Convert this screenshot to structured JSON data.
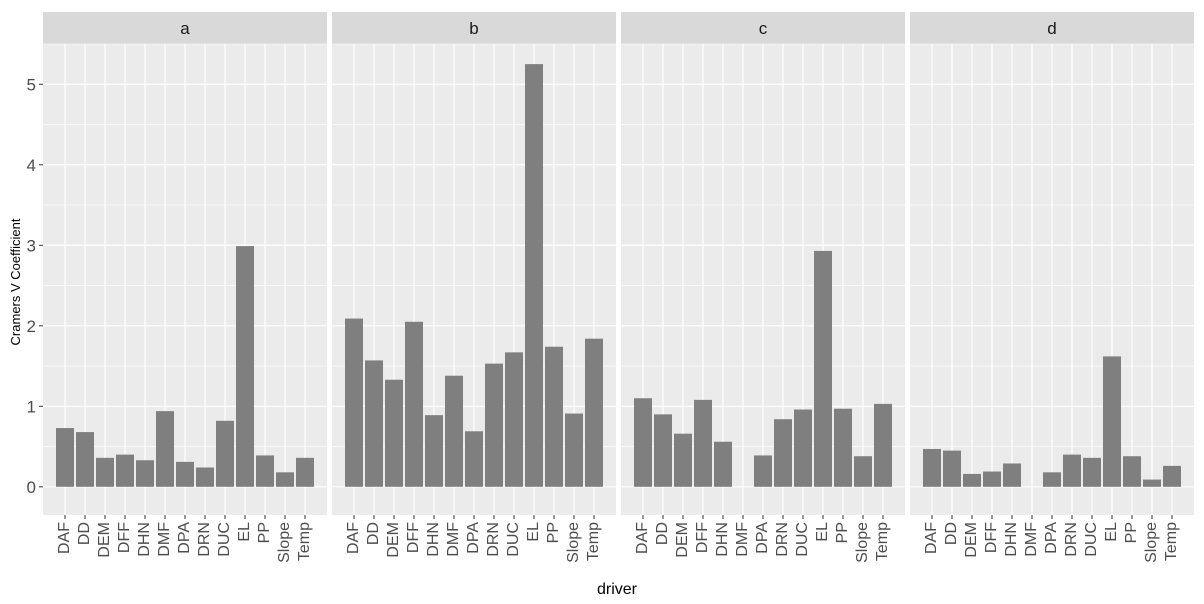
{
  "chart_data": {
    "type": "bar",
    "categories": [
      "DAF",
      "DD",
      "DEM",
      "DFF",
      "DHN",
      "DMF",
      "DPA",
      "DRN",
      "DUC",
      "EL",
      "PP",
      "Slope",
      "Temp"
    ],
    "panels": [
      {
        "label": "a",
        "values": [
          0.73,
          0.68,
          0.36,
          0.4,
          0.33,
          0.94,
          0.31,
          0.24,
          0.82,
          2.99,
          0.39,
          0.18,
          0.36
        ]
      },
      {
        "label": "b",
        "values": [
          2.09,
          1.57,
          1.33,
          2.05,
          0.89,
          1.38,
          0.69,
          1.53,
          1.67,
          5.25,
          1.74,
          0.91,
          1.84
        ]
      },
      {
        "label": "c",
        "values": [
          1.1,
          0.9,
          0.66,
          1.08,
          0.56,
          0,
          0.39,
          0.84,
          0.96,
          2.93,
          0.97,
          0.38,
          1.03
        ]
      },
      {
        "label": "d",
        "values": [
          0.47,
          0.45,
          0.16,
          0.19,
          0.29,
          0,
          0.18,
          0.4,
          0.36,
          1.62,
          0.38,
          0.09,
          0.26
        ]
      }
    ],
    "xlabel": "driver",
    "ylabel": "Cramers V Coefficient",
    "ylim": [
      -0.35,
      5.5
    ],
    "yticks": [
      0,
      1,
      2,
      3,
      4,
      5
    ],
    "grid": true,
    "colors": {
      "bar": "#7f7f7f",
      "panel_background": "#ebebeb",
      "strip_background": "#d9d9d9",
      "grid": "#ffffff"
    }
  }
}
